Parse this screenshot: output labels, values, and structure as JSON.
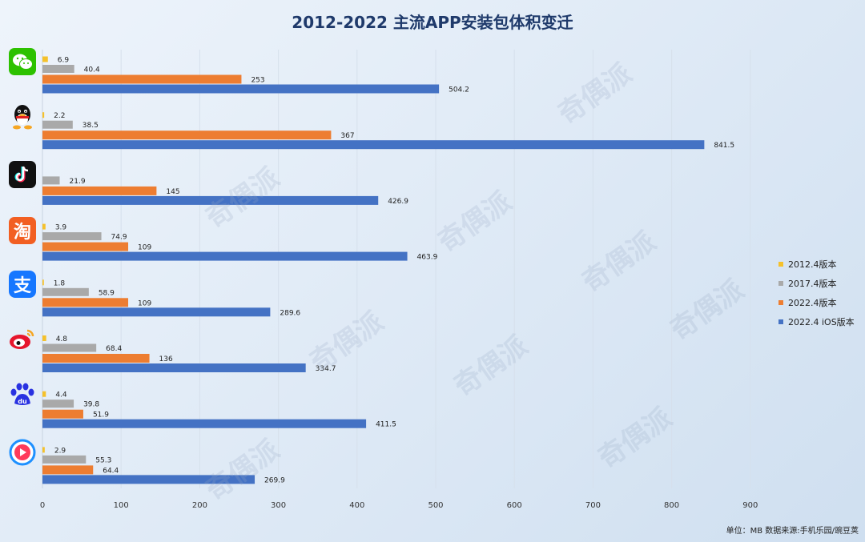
{
  "title": "2012-2022 主流APP安装包体积变迁",
  "footer": "单位：MB  数据来源:手机乐园/豌豆荚",
  "watermark_text": "奇偶派",
  "colors": {
    "s2012": "#f5c12b",
    "s2017": "#a9a9a9",
    "s2022": "#ed7d31",
    "s2022ios": "#4472c4"
  },
  "apps": [
    {
      "icon": "wechat-icon"
    },
    {
      "icon": "qq-icon"
    },
    {
      "icon": "douyin-icon"
    },
    {
      "icon": "taobao-icon"
    },
    {
      "icon": "alipay-icon"
    },
    {
      "icon": "weibo-icon"
    },
    {
      "icon": "baidu-icon"
    },
    {
      "icon": "youku-icon"
    }
  ],
  "chart_data": {
    "type": "bar",
    "orientation": "horizontal",
    "title": "2012-2022 主流APP安装包体积变迁",
    "xlim": [
      0,
      900
    ],
    "xticks": [
      0,
      100,
      200,
      300,
      400,
      500,
      600,
      700,
      800,
      900
    ],
    "grid": true,
    "legend_position": "right",
    "series": [
      {
        "name": "2012.4版本",
        "color": "#f5c12b",
        "values": [
          6.9,
          2.2,
          null,
          3.9,
          1.8,
          4.8,
          4.4,
          2.9
        ]
      },
      {
        "name": "2017.4版本",
        "color": "#a9a9a9",
        "values": [
          40.4,
          38.5,
          21.9,
          74.9,
          58.9,
          68.4,
          39.8,
          55.3
        ]
      },
      {
        "name": "2022.4版本",
        "color": "#ed7d31",
        "values": [
          253,
          367,
          145,
          109,
          109,
          136,
          51.9,
          64.4
        ]
      },
      {
        "name": "2022.4 iOS版本",
        "color": "#4472c4",
        "values": [
          504.2,
          841.5,
          426.9,
          463.9,
          289.6,
          334.7,
          411.5,
          269.9
        ]
      }
    ]
  }
}
